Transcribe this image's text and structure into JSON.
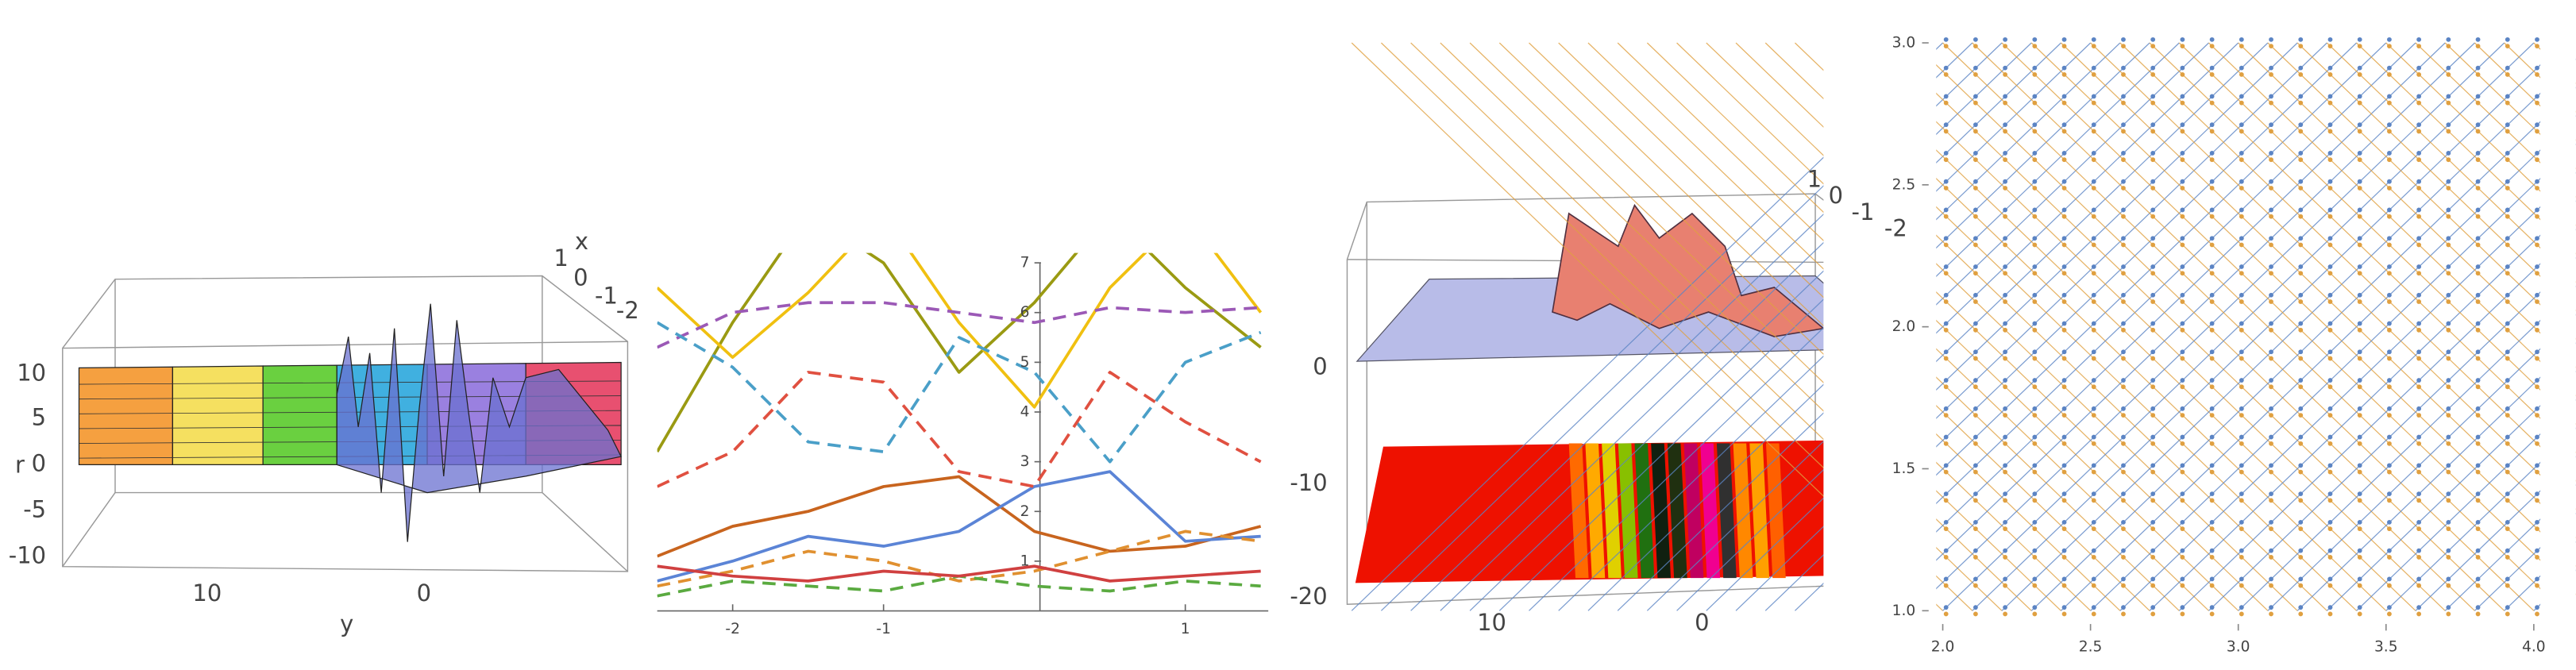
{
  "chart_data": [
    {
      "type": "surface3d",
      "x_label": "x",
      "y_label": "y",
      "z_label": "r",
      "xticks": [
        1,
        0,
        -1,
        -2
      ],
      "yticks": [
        10,
        0
      ],
      "zticks": [
        10,
        5,
        0,
        -5,
        -10
      ]
    },
    {
      "type": "line",
      "x": [
        -2.5,
        -2,
        -1.5,
        -1,
        -0.5,
        0,
        0.5,
        1,
        1.5
      ],
      "xlim": [
        -2.5,
        1.55
      ],
      "ylim": [
        0,
        7.2
      ],
      "xticks": [
        -2,
        -1,
        1
      ],
      "yticks": [
        1,
        2,
        3,
        4,
        5,
        6,
        7
      ],
      "series": [
        {
          "color": "#9a9a12",
          "dash": false,
          "values": [
            3.2,
            5.8,
            8,
            7,
            4.8,
            6.2,
            8,
            6.5,
            5.3
          ]
        },
        {
          "color": "#f0c010",
          "dash": false,
          "values": [
            6.5,
            5.1,
            6.4,
            8,
            5.8,
            4.1,
            6.5,
            8,
            6
          ]
        },
        {
          "color": "#c8641e",
          "dash": false,
          "values": [
            1.1,
            1.7,
            2.0,
            2.5,
            2.7,
            1.6,
            1.2,
            1.3,
            1.7
          ]
        },
        {
          "color": "#5b84d6",
          "dash": false,
          "values": [
            0.6,
            1.0,
            1.5,
            1.3,
            1.6,
            2.5,
            2.8,
            1.4,
            1.5
          ]
        },
        {
          "color": "#9b59b6",
          "dash": true,
          "values": [
            5.3,
            6.0,
            6.2,
            6.2,
            6.0,
            5.8,
            6.1,
            6.0,
            6.1
          ]
        },
        {
          "color": "#4a9fc8",
          "dash": true,
          "values": [
            5.8,
            4.9,
            3.4,
            3.2,
            5.5,
            4.8,
            3.0,
            5.0,
            5.6
          ]
        },
        {
          "color": "#e05040",
          "dash": true,
          "values": [
            2.5,
            3.2,
            4.8,
            4.6,
            2.8,
            2.5,
            4.8,
            3.8,
            3.0
          ]
        },
        {
          "color": "#e09030",
          "dash": true,
          "values": [
            0.5,
            0.8,
            1.2,
            1.0,
            0.6,
            0.8,
            1.2,
            1.6,
            1.4
          ]
        },
        {
          "color": "#5aaa40",
          "dash": true,
          "values": [
            0.3,
            0.6,
            0.5,
            0.4,
            0.7,
            0.5,
            0.4,
            0.6,
            0.5
          ]
        },
        {
          "color": "#d04040",
          "dash": false,
          "values": [
            0.9,
            0.7,
            0.6,
            0.8,
            0.7,
            0.9,
            0.6,
            0.7,
            0.8
          ]
        }
      ]
    },
    {
      "type": "surface3d",
      "xticks": [
        1,
        0,
        -1,
        -2
      ],
      "yticks": [
        10,
        0
      ],
      "zticks": [
        0,
        -10,
        -20
      ]
    },
    {
      "type": "vector",
      "xlim": [
        1.93,
        4.07
      ],
      "ylim": [
        0.93,
        3.07
      ],
      "xticks": [
        {
          "value": 2,
          "label": "2.0"
        },
        {
          "value": 2.5,
          "label": "2.5"
        },
        {
          "value": 3,
          "label": "3.0"
        },
        {
          "value": 3.5,
          "label": "3.5"
        },
        {
          "value": 4,
          "label": "4.0"
        }
      ],
      "yticks": [
        {
          "value": 1,
          "label": "1.0"
        },
        {
          "value": 1.5,
          "label": "1.5"
        },
        {
          "value": 2,
          "label": "2.0"
        },
        {
          "value": 2.5,
          "label": "2.5"
        },
        {
          "value": 3,
          "label": "3.0"
        }
      ],
      "series": [
        {
          "color": "#5b84c4"
        },
        {
          "color": "#e0a040"
        }
      ]
    }
  ]
}
